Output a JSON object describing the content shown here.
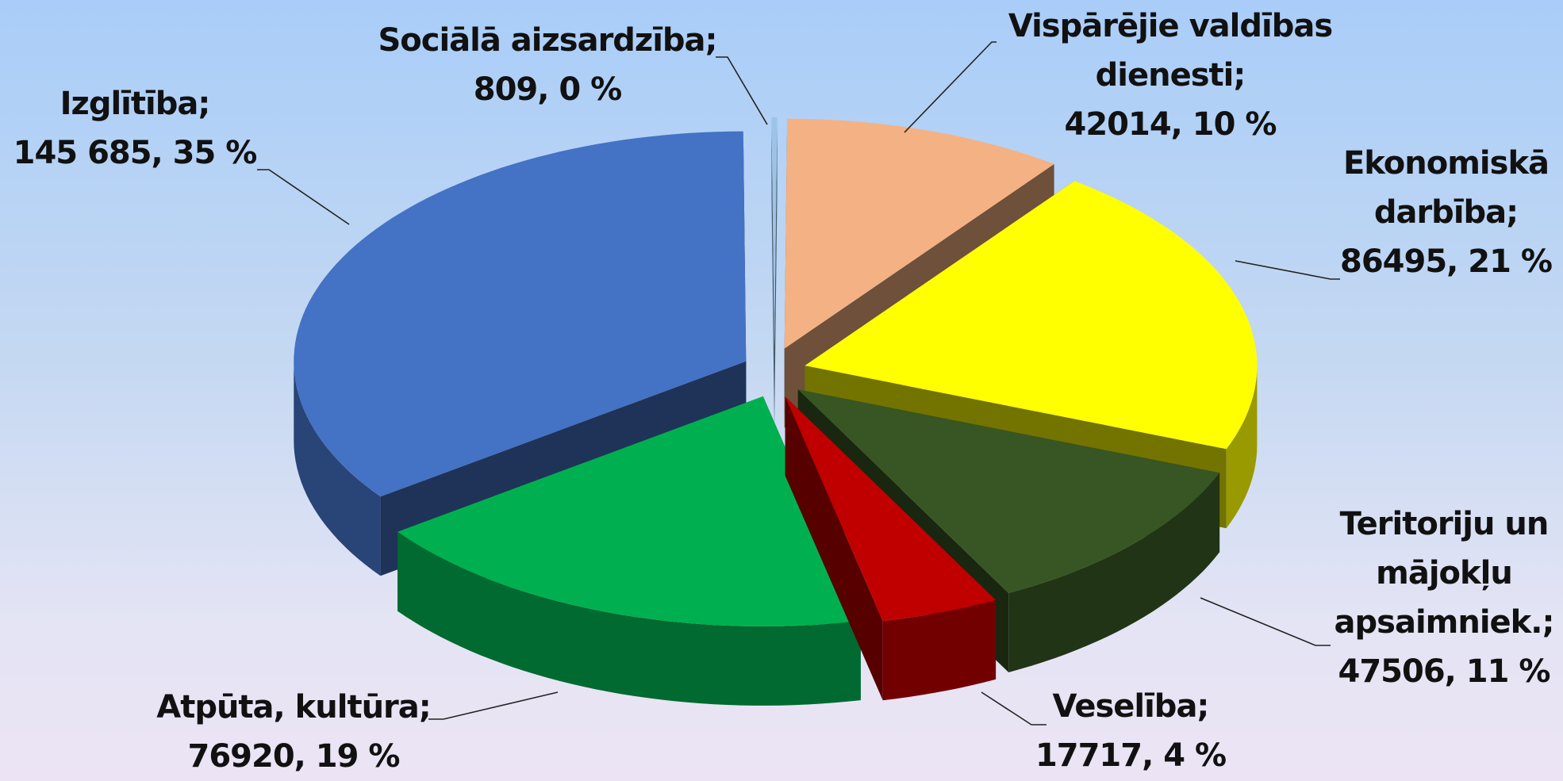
{
  "chart_data": {
    "type": "pie3d",
    "categories": [
      "Sociālā aizsardzība;",
      "Vispārējie valdības dienesti;",
      "Ekonomiskā darbība;",
      "Teritoriju un mājokļu apsaimniek.;",
      "Veselība;",
      "Atpūta, kultūra;",
      "Izglītība;"
    ],
    "values": [
      809,
      42014,
      86495,
      47506,
      17717,
      76920,
      145685
    ],
    "value_labels": [
      "809, 0 %",
      "42014, 10 %",
      "86495, 21 %",
      "47506, 11 %",
      "17717, 4 %",
      "76920, 19 %",
      "145 685, 35 %"
    ],
    "colors": [
      "#9dc3e6",
      "#f4b183",
      "#ffff00",
      "#375623",
      "#c00000",
      "#00b050",
      "#4472c4"
    ]
  }
}
